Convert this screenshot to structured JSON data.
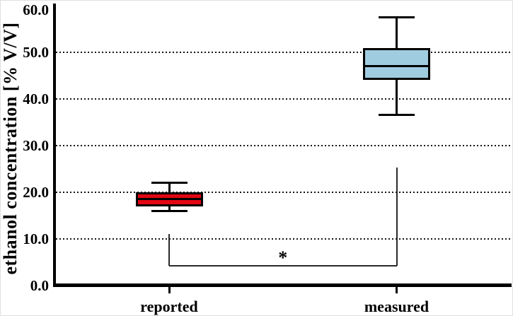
{
  "figure": {
    "background": "#ffffff",
    "border_color": "#e0e0e0"
  },
  "colors": {
    "axis": "#000000",
    "grid_dots": "#141414",
    "box_border": "#000000",
    "reported_fill": "#e30613",
    "measured_fill": "#a0cce0",
    "significance_line": "#2a2a2a"
  },
  "chart_data": {
    "type": "boxplot",
    "title": "",
    "xlabel": "",
    "ylabel": "ethanol concentration [% V/V]",
    "ylim": [
      0,
      60
    ],
    "ytick_interval": 10,
    "yticks": [
      {
        "value": 60,
        "label": "60.0"
      },
      {
        "value": 50,
        "label": "50.0"
      },
      {
        "value": 40,
        "label": "40.0"
      },
      {
        "value": 30,
        "label": "30.0"
      },
      {
        "value": 20,
        "label": "20.0"
      },
      {
        "value": 10,
        "label": "10.0"
      },
      {
        "value": 0,
        "label": "0.0"
      }
    ],
    "gridlines": {
      "values": [
        10,
        20,
        30,
        40,
        50
      ],
      "style": "dotted",
      "grid_on": true
    },
    "categories": [
      "reported",
      "measured"
    ],
    "series": [
      {
        "name": "reported",
        "min": 16.0,
        "q1": 17.0,
        "median": 18.5,
        "q3": 20.0,
        "max": 22.0,
        "fill": "#e30613"
      },
      {
        "name": "measured",
        "min": 36.5,
        "q1": 44.0,
        "median": 47.0,
        "q3": 50.8,
        "max": 57.4,
        "fill": "#a0cce0"
      }
    ],
    "legend": null,
    "significance": {
      "label": "*",
      "connects": [
        "reported",
        "measured"
      ],
      "bar_y": 4.2,
      "left_arm_top_y": 11.0,
      "right_arm_top_y": 25.3
    }
  }
}
